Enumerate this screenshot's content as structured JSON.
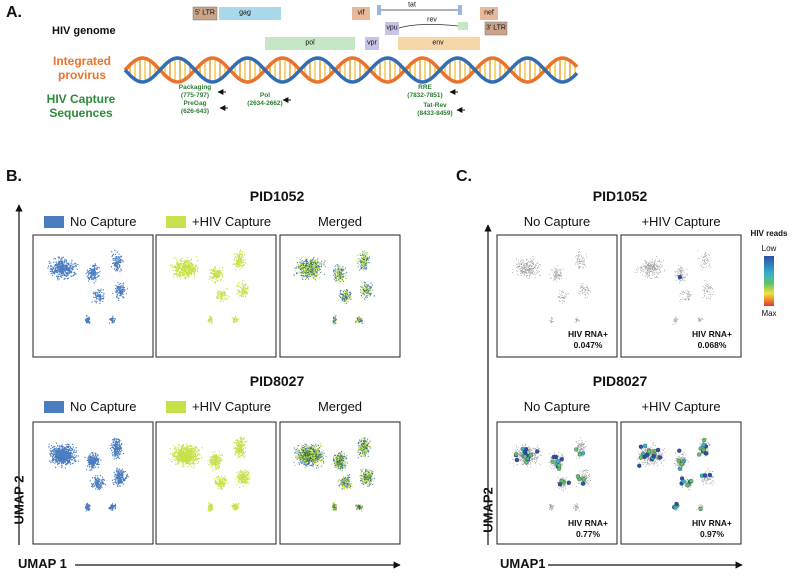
{
  "panel_a": {
    "label": "A.",
    "row_labels": [
      "HIV genome",
      "Integrated provirus",
      "HIV Capture Sequences"
    ],
    "genes": [
      "5' LTR",
      "gag",
      "pol",
      "vif",
      "vpr",
      "vpu",
      "tat",
      "rev",
      "env",
      "nef",
      "3' LTR"
    ],
    "capture_sites": [
      {
        "name": "Packaging",
        "range": "(775-797)"
      },
      {
        "name": "PreGag",
        "range": "(626-643)"
      },
      {
        "name": "Pol",
        "range": "(2634-2662)"
      },
      {
        "name": "RRE",
        "range": "(7832-7851)"
      },
      {
        "name": "Tat-Rev",
        "range": "(8433-8459)"
      }
    ]
  },
  "panel_b": {
    "label": "B.",
    "samples": [
      {
        "title": "PID1052",
        "columns": [
          "No Capture",
          "+HIV Capture",
          "Merged"
        ]
      },
      {
        "title": "PID8027",
        "columns": [
          "No Capture",
          "+HIV Capture",
          "Merged"
        ]
      }
    ],
    "x_axis": "UMAP 1",
    "y_axis": "UMAP 2"
  },
  "panel_c": {
    "label": "C.",
    "samples": [
      {
        "title": "PID1052",
        "columns": [
          "No Capture",
          "+HIV Capture"
        ],
        "stats": [
          {
            "label": "HIV RNA+",
            "value": "0.047%"
          },
          {
            "label": "HIV RNA+",
            "value": "0.068%"
          }
        ]
      },
      {
        "title": "PID8027",
        "columns": [
          "No Capture",
          "+HIV Capture"
        ],
        "stats": [
          {
            "label": "HIV RNA+",
            "value": "0.77%"
          },
          {
            "label": "HIV RNA+",
            "value": "0.97%"
          }
        ]
      }
    ],
    "color_scale": {
      "title": "HIV reads",
      "low": "Low",
      "high": "Max"
    },
    "x_axis": "UMAP1",
    "y_axis": "UMAP2"
  }
}
